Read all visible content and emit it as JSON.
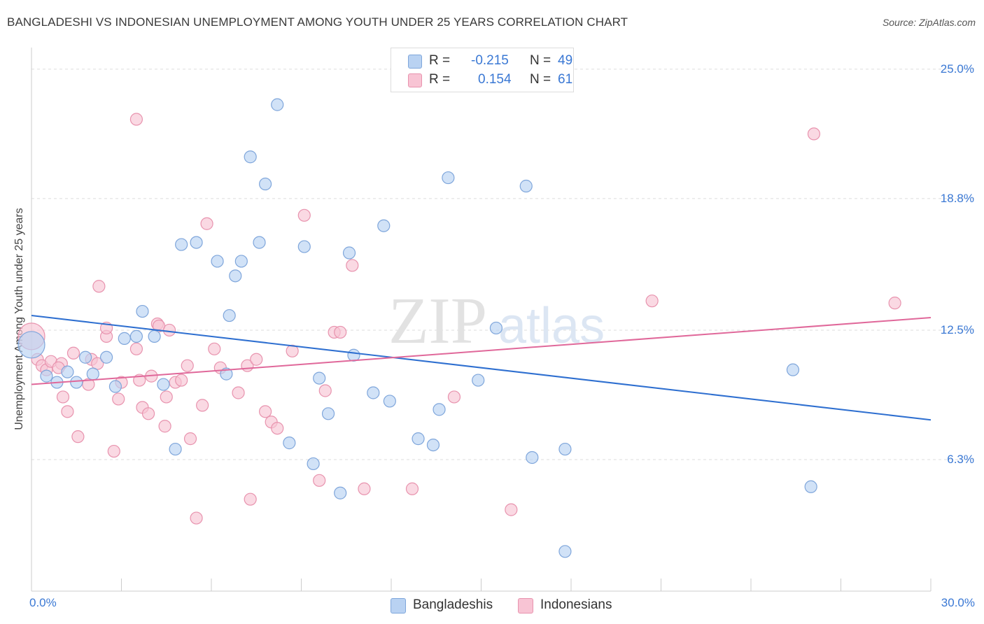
{
  "title": "BANGLADESHI VS INDONESIAN UNEMPLOYMENT AMONG YOUTH UNDER 25 YEARS CORRELATION CHART",
  "source": "Source: ZipAtlas.com",
  "watermark": {
    "zip": "ZIP",
    "atlas": "atlas"
  },
  "legend_top": [
    {
      "r_label": "R =",
      "r_value": "-0.215",
      "n_label": "N =",
      "n_value": "49"
    },
    {
      "r_label": "R =",
      "r_value": "0.154",
      "n_label": "N =",
      "n_value": "61"
    }
  ],
  "legend_bottom": [
    "Bangladeshis",
    "Indonesians"
  ],
  "colors": {
    "blue_fill": "#b9d2f2",
    "blue_stroke": "#7fa6db",
    "blue_line": "#2e6fd0",
    "pink_fill": "#f8c4d4",
    "pink_stroke": "#e893ae",
    "pink_line": "#e0689a",
    "label_blue": "#3a78d4",
    "grid": "#dcdcdc",
    "axis": "#cccccc"
  },
  "chart_data": {
    "type": "scatter",
    "title": "BANGLADESHI VS INDONESIAN UNEMPLOYMENT AMONG YOUTH UNDER 25 YEARS CORRELATION CHART",
    "xlabel": "",
    "ylabel": "Unemployment Among Youth under 25 years",
    "xlim": [
      0,
      30
    ],
    "ylim": [
      0,
      25.7
    ],
    "x_tick_labels": [
      {
        "value": 0,
        "label": "0.0%"
      },
      {
        "value": 30,
        "label": "30.0%"
      }
    ],
    "y_ticks": [
      {
        "value": 6.3,
        "label": "6.3%"
      },
      {
        "value": 12.5,
        "label": "12.5%"
      },
      {
        "value": 18.8,
        "label": "18.8%"
      },
      {
        "value": 25.0,
        "label": "25.0%"
      }
    ],
    "series": [
      {
        "name": "Bangladeshis",
        "color": "blue",
        "trend": {
          "x": [
            0,
            30
          ],
          "y": [
            13.2,
            8.2
          ]
        },
        "points": [
          [
            0.0,
            11.8
          ],
          [
            0.5,
            10.3
          ],
          [
            0.85,
            10.0
          ],
          [
            1.2,
            10.5
          ],
          [
            1.5,
            10.0
          ],
          [
            1.8,
            11.2
          ],
          [
            2.05,
            10.4
          ],
          [
            2.5,
            11.2
          ],
          [
            2.8,
            9.8
          ],
          [
            3.1,
            12.1
          ],
          [
            3.5,
            12.2
          ],
          [
            3.7,
            13.4
          ],
          [
            4.1,
            12.2
          ],
          [
            4.4,
            9.9
          ],
          [
            4.8,
            6.8
          ],
          [
            5.0,
            16.6
          ],
          [
            5.5,
            16.7
          ],
          [
            6.2,
            15.8
          ],
          [
            6.5,
            10.4
          ],
          [
            6.6,
            13.2
          ],
          [
            6.8,
            15.1
          ],
          [
            7.0,
            15.8
          ],
          [
            7.3,
            20.8
          ],
          [
            7.6,
            16.7
          ],
          [
            7.8,
            19.5
          ],
          [
            8.2,
            23.3
          ],
          [
            8.6,
            7.1
          ],
          [
            9.1,
            16.5
          ],
          [
            9.4,
            6.1
          ],
          [
            9.6,
            10.2
          ],
          [
            9.9,
            8.5
          ],
          [
            10.3,
            4.7
          ],
          [
            10.6,
            16.2
          ],
          [
            10.75,
            11.3
          ],
          [
            11.4,
            9.5
          ],
          [
            11.75,
            17.5
          ],
          [
            11.95,
            9.1
          ],
          [
            12.9,
            7.3
          ],
          [
            13.4,
            7.0
          ],
          [
            13.6,
            8.7
          ],
          [
            13.9,
            19.8
          ],
          [
            14.9,
            10.1
          ],
          [
            15.5,
            12.6
          ],
          [
            16.5,
            19.4
          ],
          [
            16.7,
            6.4
          ],
          [
            17.8,
            6.8
          ],
          [
            17.8,
            1.9
          ],
          [
            25.4,
            10.6
          ],
          [
            26.0,
            5.0
          ]
        ]
      },
      {
        "name": "Indonesians",
        "color": "pink",
        "trend": {
          "x": [
            0,
            30
          ],
          "y": [
            9.9,
            13.1
          ]
        },
        "points": [
          [
            0.0,
            12.2
          ],
          [
            0.2,
            11.1
          ],
          [
            0.35,
            10.8
          ],
          [
            0.5,
            10.6
          ],
          [
            0.65,
            11.0
          ],
          [
            1.0,
            10.9
          ],
          [
            1.05,
            9.3
          ],
          [
            1.2,
            8.6
          ],
          [
            1.4,
            11.4
          ],
          [
            1.55,
            7.4
          ],
          [
            1.9,
            9.9
          ],
          [
            2.0,
            11.1
          ],
          [
            2.2,
            10.9
          ],
          [
            2.25,
            14.6
          ],
          [
            2.5,
            12.2
          ],
          [
            2.5,
            12.6
          ],
          [
            2.75,
            6.7
          ],
          [
            2.9,
            9.2
          ],
          [
            3.0,
            10.0
          ],
          [
            3.5,
            22.6
          ],
          [
            3.5,
            11.6
          ],
          [
            3.6,
            10.1
          ],
          [
            3.7,
            8.8
          ],
          [
            3.9,
            8.5
          ],
          [
            4.0,
            10.3
          ],
          [
            4.2,
            12.8
          ],
          [
            4.25,
            12.7
          ],
          [
            4.45,
            7.9
          ],
          [
            4.5,
            9.3
          ],
          [
            4.6,
            12.5
          ],
          [
            4.8,
            10.0
          ],
          [
            5.0,
            10.1
          ],
          [
            5.2,
            10.8
          ],
          [
            5.3,
            7.3
          ],
          [
            5.5,
            3.5
          ],
          [
            5.7,
            8.9
          ],
          [
            5.85,
            17.6
          ],
          [
            6.1,
            11.6
          ],
          [
            6.3,
            10.7
          ],
          [
            6.9,
            9.5
          ],
          [
            7.2,
            10.8
          ],
          [
            7.5,
            11.1
          ],
          [
            7.8,
            8.6
          ],
          [
            8.0,
            8.1
          ],
          [
            8.2,
            7.8
          ],
          [
            8.7,
            11.5
          ],
          [
            9.1,
            18.0
          ],
          [
            9.6,
            5.3
          ],
          [
            9.8,
            9.6
          ],
          [
            10.1,
            12.4
          ],
          [
            10.3,
            12.4
          ],
          [
            10.7,
            15.6
          ],
          [
            11.1,
            4.9
          ],
          [
            12.7,
            4.9
          ],
          [
            14.1,
            9.3
          ],
          [
            16.0,
            3.9
          ],
          [
            20.7,
            13.9
          ],
          [
            26.1,
            21.9
          ],
          [
            28.8,
            13.8
          ],
          [
            0.9,
            10.7
          ],
          [
            7.3,
            4.4
          ]
        ]
      }
    ]
  }
}
